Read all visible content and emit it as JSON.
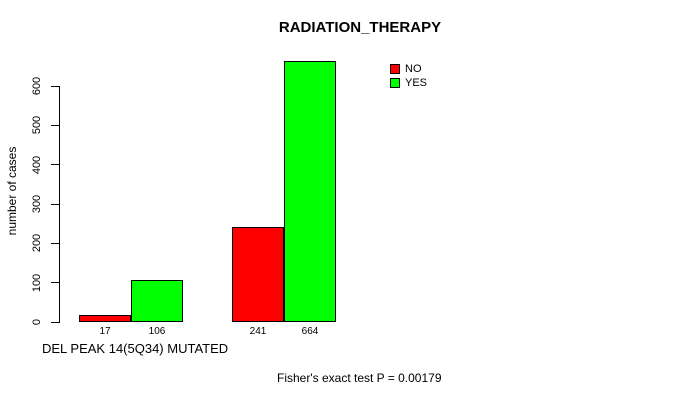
{
  "page": {
    "background_color": "#FFFFFF",
    "text_color": "#000000"
  },
  "chart_data": {
    "type": "bar",
    "title": "RADIATION_THERAPY",
    "ylabel": "number of cases",
    "xlabel": "",
    "ylim": [
      0,
      600
    ],
    "yticks": [
      "0",
      "100",
      "200",
      "300",
      "400",
      "500",
      "600"
    ],
    "grid": false,
    "groups": [
      "group-1",
      "group-2"
    ],
    "series": [
      {
        "name": "NO",
        "color": "#FF0000",
        "values": [
          17,
          241
        ]
      },
      {
        "name": "YES",
        "color": "#00FF00",
        "values": [
          106,
          664
        ]
      }
    ],
    "bar_value_labels": [
      "17",
      "106",
      "241",
      "664"
    ],
    "x_annotation": "DEL PEAK 14(5Q34) MUTATED",
    "footnote": "Fisher's exact test P = 0.00179",
    "legend": {
      "position": "top-right",
      "entries": [
        {
          "label": "NO",
          "color": "#FF0000"
        },
        {
          "label": "YES",
          "color": "#00FF00"
        }
      ]
    }
  }
}
